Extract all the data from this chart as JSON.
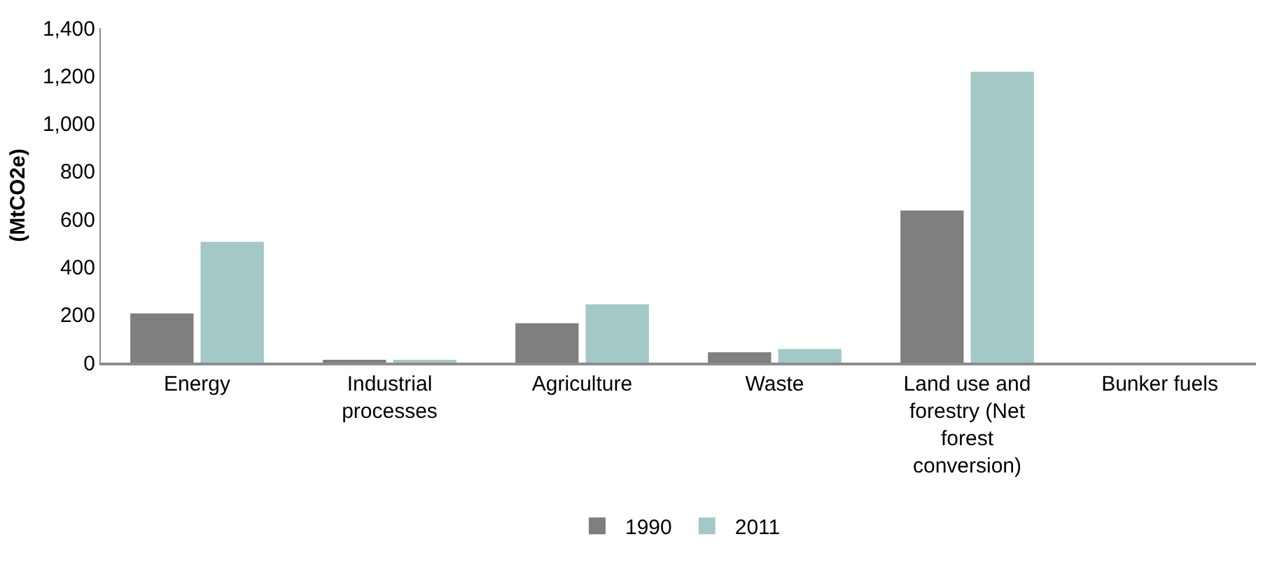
{
  "chart_data": {
    "type": "bar",
    "ylabel": "(MtCO2e)",
    "categories": [
      "Energy",
      "Industrial processes",
      "Agriculture",
      "Waste",
      "Land use and forestry (Net forest conversion)",
      "Bunker fuels"
    ],
    "series": [
      {
        "name": "1990",
        "color": "#7f7f7f",
        "values": [
          206,
          6,
          165,
          43,
          636,
          0
        ]
      },
      {
        "name": "2011",
        "color": "#a3c9c7",
        "values": [
          505,
          11,
          244,
          57,
          1217,
          0
        ]
      }
    ],
    "ylim": [
      0,
      1400
    ],
    "yticks": [
      0,
      200,
      400,
      600,
      800,
      {
        "value": 1000,
        "label": "1,000"
      },
      {
        "value": 1200,
        "label": "1,200"
      },
      {
        "value": 1400,
        "label": "1,400"
      }
    ],
    "legend": "bottom"
  }
}
